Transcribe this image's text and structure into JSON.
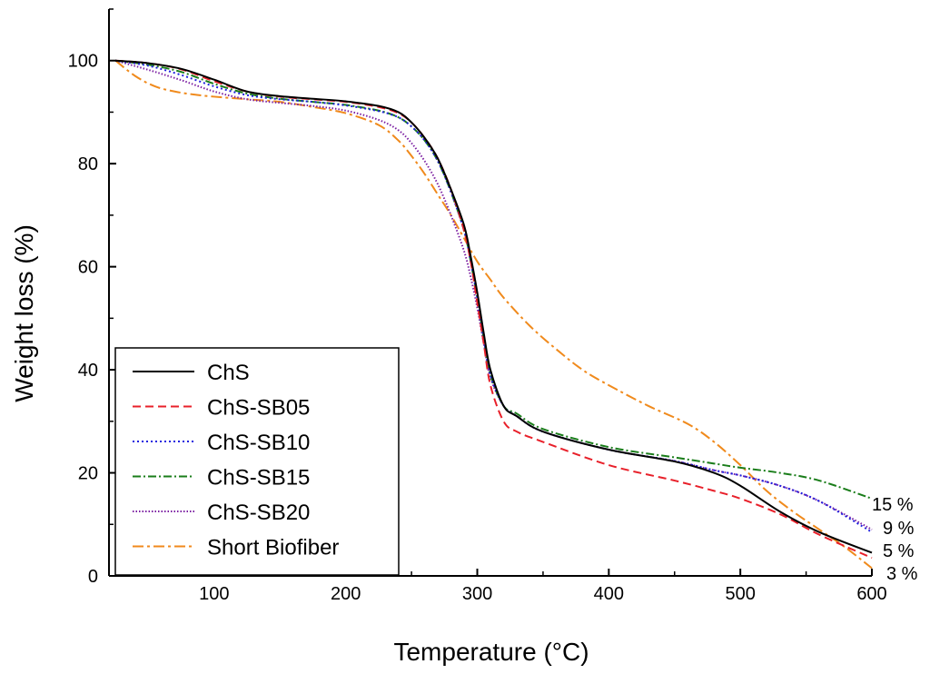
{
  "chart_data": {
    "type": "line",
    "title": "",
    "xlabel": "Temperature (°C)",
    "ylabel": "Weight loss (%)",
    "xlim": [
      20,
      600
    ],
    "ylim": [
      0,
      110
    ],
    "x_ticks": [
      100,
      200,
      300,
      400,
      500,
      600
    ],
    "y_ticks": [
      0,
      20,
      40,
      60,
      80,
      100
    ],
    "legend_position": "bottom-left",
    "series": [
      {
        "name": "ChS",
        "color": "#000000",
        "dash": "solid",
        "x": [
          25,
          50,
          75,
          100,
          125,
          150,
          175,
          200,
          225,
          240,
          250,
          260,
          270,
          280,
          290,
          295,
          300,
          305,
          310,
          320,
          330,
          350,
          400,
          450,
          480,
          500,
          530,
          560,
          600
        ],
        "y": [
          100,
          99.5,
          98.4,
          96.3,
          94,
          93.1,
          92.6,
          92.1,
          91.2,
          90,
          88,
          85,
          81,
          75,
          68,
          62,
          55,
          47,
          40,
          33,
          31,
          28,
          24.5,
          22.2,
          20,
          17.5,
          12.5,
          8.5,
          4.5
        ]
      },
      {
        "name": "ChS-SB05",
        "color": "#e8202a",
        "dash": "dashed",
        "x": [
          25,
          50,
          75,
          100,
          125,
          150,
          175,
          200,
          225,
          240,
          250,
          260,
          270,
          280,
          290,
          295,
          300,
          305,
          310,
          320,
          330,
          350,
          400,
          450,
          480,
          500,
          530,
          560,
          600
        ],
        "y": [
          100,
          99.5,
          98.3,
          96,
          94,
          93,
          92.5,
          92,
          91,
          89.8,
          88,
          85,
          81,
          75,
          67,
          61,
          53,
          45,
          37,
          30,
          28,
          26,
          21.5,
          18.5,
          16.5,
          15,
          12,
          8,
          3.5
        ]
      },
      {
        "name": "ChS-SB10",
        "color": "#2020e0",
        "dash": "dotted",
        "x": [
          25,
          50,
          75,
          100,
          125,
          150,
          175,
          200,
          225,
          240,
          250,
          260,
          270,
          280,
          290,
          295,
          300,
          305,
          310,
          320,
          330,
          350,
          400,
          450,
          480,
          500,
          530,
          560,
          600
        ],
        "y": [
          100,
          99,
          97.2,
          95,
          93.3,
          92.5,
          92,
          91.3,
          90.2,
          89,
          87.2,
          84.5,
          80.5,
          74.5,
          67,
          61,
          54,
          46,
          39,
          33,
          31,
          28,
          24.5,
          22.3,
          20.5,
          19.5,
          17.5,
          14.5,
          8.5
        ]
      },
      {
        "name": "ChS-SB15",
        "color": "#1a7d1a",
        "dash": "dash-dot",
        "x": [
          25,
          50,
          75,
          100,
          125,
          150,
          175,
          200,
          225,
          240,
          250,
          260,
          270,
          280,
          290,
          295,
          300,
          305,
          310,
          320,
          330,
          350,
          400,
          450,
          480,
          500,
          530,
          560,
          600
        ],
        "y": [
          100,
          99.2,
          97.8,
          95.5,
          93.6,
          92.6,
          92,
          91.4,
          90.3,
          89,
          87.2,
          84.5,
          80.5,
          74.5,
          67,
          61,
          54,
          46,
          39,
          33,
          31.5,
          28.5,
          25,
          23,
          21.8,
          21,
          20,
          18.5,
          15
        ]
      },
      {
        "name": "ChS-SB20",
        "color": "#7b1fa2",
        "dash": "dotted-fine",
        "x": [
          25,
          50,
          75,
          100,
          125,
          150,
          175,
          200,
          225,
          240,
          250,
          260,
          270,
          280,
          290,
          295,
          300,
          305,
          310,
          320,
          330,
          350,
          400,
          450,
          480,
          500,
          530,
          560,
          600
        ],
        "y": [
          100,
          98.2,
          96.2,
          94,
          92.5,
          91.8,
          91.2,
          90.3,
          88.5,
          86.5,
          84,
          80.5,
          76,
          70,
          63,
          58,
          52,
          45,
          38.5,
          33,
          31,
          28,
          24.5,
          22.3,
          20.5,
          19.5,
          17.5,
          14.5,
          9
        ]
      },
      {
        "name": "Short Biofiber",
        "color": "#f08a1c",
        "dash": "dash-dot-long",
        "x": [
          25,
          40,
          55,
          70,
          85,
          100,
          125,
          150,
          175,
          200,
          225,
          240,
          250,
          260,
          270,
          280,
          290,
          300,
          310,
          320,
          340,
          360,
          380,
          400,
          430,
          460,
          480,
          500,
          520,
          540,
          560,
          580,
          600
        ],
        "y": [
          100,
          97,
          95,
          94,
          93.4,
          93,
          92.5,
          92,
          91,
          89.8,
          87.5,
          84.5,
          81.5,
          78,
          74,
          70,
          65.5,
          61,
          57.5,
          54,
          48.5,
          44,
          40,
          37,
          33,
          29.5,
          26,
          21.5,
          16.5,
          12.5,
          9,
          5.5,
          1.5
        ]
      }
    ],
    "end_labels": [
      "15 %",
      "9 %",
      "5 %",
      "3 %"
    ]
  }
}
